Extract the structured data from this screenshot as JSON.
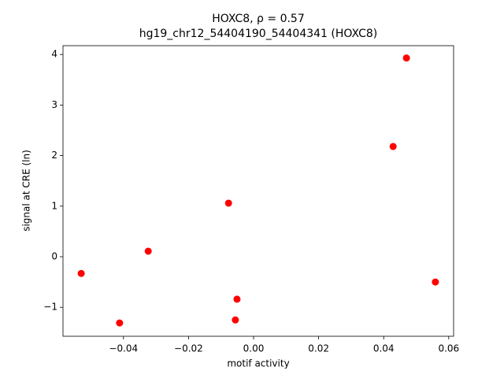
{
  "chart_data": {
    "type": "scatter",
    "title": "HOXC8, ρ = 0.57",
    "subtitle": "hg19_chr12_54404190_54404341 (HOXC8)",
    "x_label": "motif activity",
    "y_label": "signal at CRE (ln)",
    "color": "#ff0000",
    "x": [
      -0.053,
      -0.0412,
      -0.0324,
      -0.0077,
      -0.0056,
      -0.0051,
      0.0429,
      0.047,
      0.0559
    ],
    "values": [
      -0.33,
      -1.31,
      0.11,
      1.06,
      -1.25,
      -0.84,
      2.18,
      3.93,
      -0.5
    ],
    "xlim": [
      -0.0586,
      0.0615
    ],
    "ylim": [
      -1.573,
      4.174
    ],
    "xticks": [
      {
        "value": -0.04,
        "label": "−0.04"
      },
      {
        "value": -0.02,
        "label": "−0.02"
      },
      {
        "value": 0,
        "label": "0.00"
      },
      0.02,
      0.04,
      0.06
    ],
    "yticks": [
      {
        "value": -1,
        "label": "−1"
      },
      0,
      1,
      2,
      3,
      4
    ]
  }
}
